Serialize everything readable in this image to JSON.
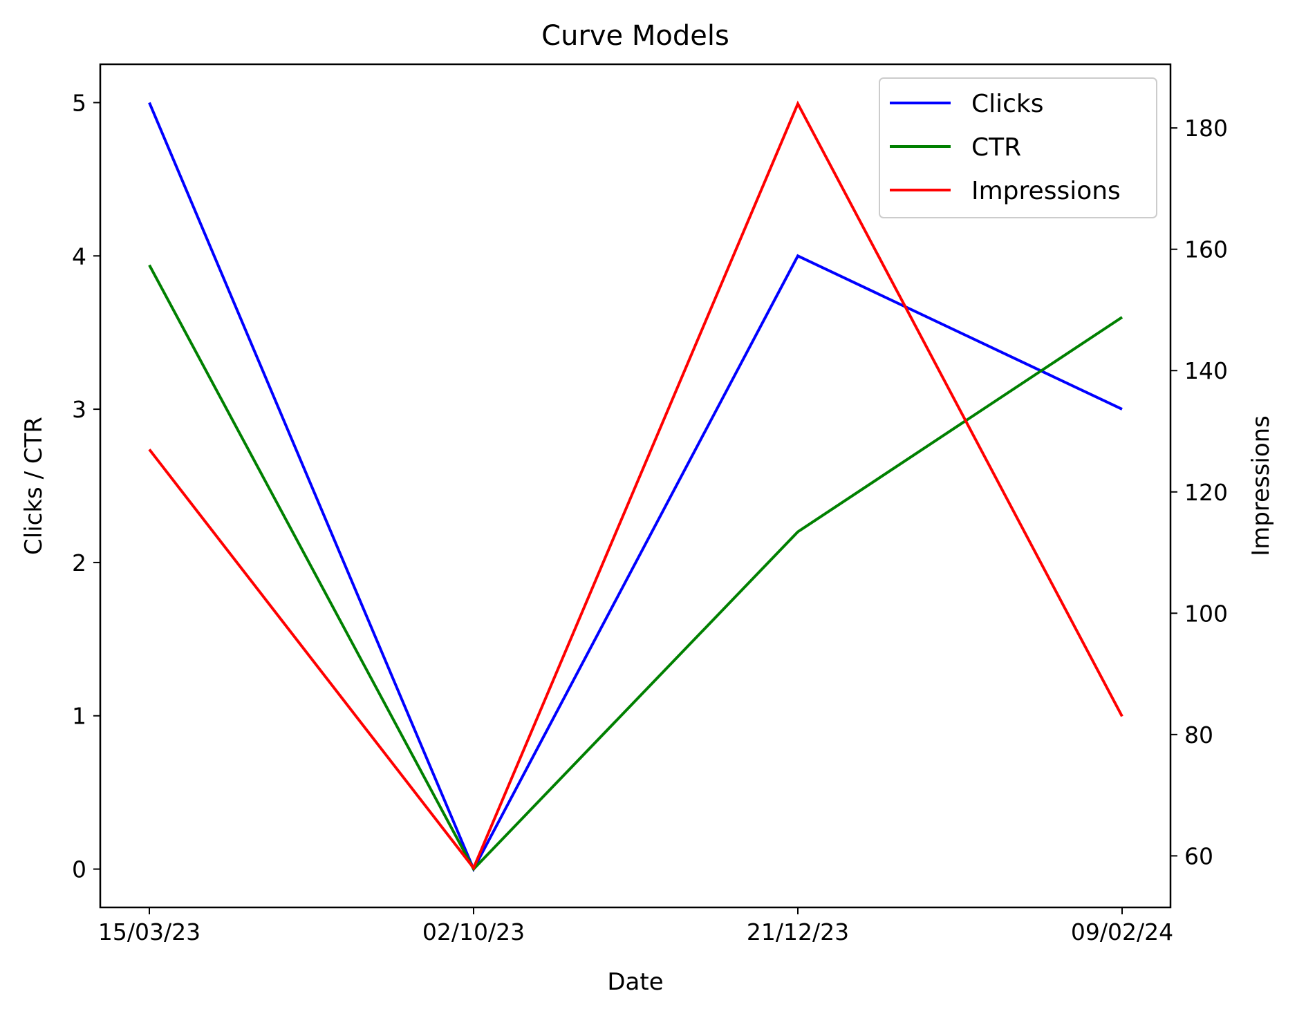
{
  "chart_data": {
    "type": "line",
    "title": "Curve Models",
    "xlabel": "Date",
    "ylabel_left": "Clicks / CTR",
    "ylabel_right": "Impressions",
    "categories": [
      "15/03/23",
      "02/10/23",
      "21/12/23",
      "09/02/24"
    ],
    "ylim_left": [
      -0.25,
      5.25
    ],
    "yticks_left": [
      0,
      1,
      2,
      3,
      4,
      5
    ],
    "ylim_right": [
      51.5,
      190.5
    ],
    "yticks_right": [
      60,
      80,
      100,
      120,
      140,
      160,
      180
    ],
    "series": [
      {
        "name": "Clicks",
        "axis": "left",
        "color": "#0000ff",
        "values": [
          5,
          0,
          4,
          3
        ]
      },
      {
        "name": "CTR",
        "axis": "left",
        "color": "#008000",
        "values": [
          3.94,
          0,
          2.2,
          3.6
        ]
      },
      {
        "name": "Impressions",
        "axis": "right",
        "color": "#ff0000",
        "values": [
          127,
          58,
          184,
          83
        ]
      }
    ],
    "legend": "top-right",
    "grid": false
  }
}
